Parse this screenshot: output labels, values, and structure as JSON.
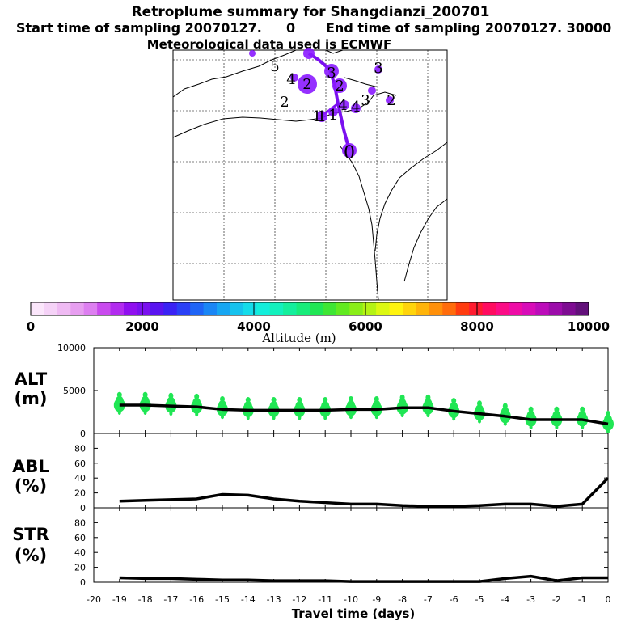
{
  "header": {
    "title": "Retroplume summary for Shangdianzi_200701",
    "line2_start": "Start time of sampling 20070127.",
    "line2_mid": "0",
    "line2_end": "End time of sampling 20070127. 30000",
    "line3": "Meteorological data used is ECMWF"
  },
  "map": {
    "marker_labels": [
      "5",
      "4",
      "2",
      "3",
      "3",
      "2",
      "4",
      "3",
      "1",
      "4",
      "1",
      "2",
      "0",
      "2",
      "1"
    ],
    "track_color": "#7a10ef",
    "marker_color": "#8a1aff"
  },
  "colorbar": {
    "ticks": [
      "0",
      "2000",
      "4000",
      "6000",
      "8000",
      "10000"
    ],
    "label": "Altitude (m)",
    "colors": [
      "#fbe6fb",
      "#f5d2f7",
      "#efbaf3",
      "#e79ef0",
      "#dd7ff0",
      "#c94bee",
      "#b22cef",
      "#9010ef",
      "#7a10ef",
      "#5a14f0",
      "#3a22f4",
      "#2a40f6",
      "#1f64f6",
      "#1a86f5",
      "#17a6f2",
      "#16c2ee",
      "#14dcea",
      "#12eedb",
      "#12f1bd",
      "#14ef9c",
      "#18ec7a",
      "#20e654",
      "#3ee634",
      "#62ea20",
      "#8aee18",
      "#b4f314",
      "#dcf812",
      "#fff40e",
      "#ffd40c",
      "#ffb40a",
      "#ff900a",
      "#ff6c0c",
      "#ff3c10",
      "#ff1c30",
      "#ff0c60",
      "#fb0c86",
      "#ee0ca6",
      "#d80cb8",
      "#bc0cba",
      "#9c0caa",
      "#7e0c92",
      "#62107a"
    ]
  },
  "chart_data": [
    {
      "type": "line",
      "name": "ALT",
      "ylabel": "ALT (m)",
      "yticks": [
        "0",
        "5000",
        "10000"
      ],
      "ylim": [
        0,
        10000
      ],
      "x": [
        0,
        -1,
        -2,
        -3,
        -4,
        -5,
        -6,
        -7,
        -8,
        -9,
        -10,
        -11,
        -12,
        -13,
        -14,
        -15,
        -16,
        -17,
        -18,
        -19
      ],
      "values": [
        1100,
        1600,
        1600,
        1600,
        2000,
        2300,
        2600,
        3000,
        3000,
        2800,
        2800,
        2700,
        2700,
        2700,
        2700,
        2800,
        3100,
        3200,
        3300,
        3300
      ],
      "scatter_color": "#20e654"
    },
    {
      "type": "line",
      "name": "ABL",
      "ylabel": "ABL (%)",
      "yticks": [
        "0",
        "20",
        "40",
        "60",
        "80"
      ],
      "ylim": [
        0,
        100
      ],
      "x": [
        0,
        -1,
        -2,
        -3,
        -4,
        -5,
        -6,
        -7,
        -8,
        -9,
        -10,
        -11,
        -12,
        -13,
        -14,
        -15,
        -16,
        -17,
        -18,
        -19
      ],
      "values": [
        40,
        5,
        2,
        5,
        5,
        3,
        2,
        2,
        3,
        5,
        5,
        7,
        9,
        12,
        17,
        18,
        12,
        11,
        10,
        9
      ]
    },
    {
      "type": "line",
      "name": "STR",
      "ylabel": "STR (%)",
      "yticks": [
        "0",
        "20",
        "40",
        "60",
        "80"
      ],
      "ylim": [
        0,
        100
      ],
      "x": [
        0,
        -1,
        -2,
        -3,
        -4,
        -5,
        -6,
        -7,
        -8,
        -9,
        -10,
        -11,
        -12,
        -13,
        -14,
        -15,
        -16,
        -17,
        -18,
        -19
      ],
      "values": [
        6,
        6,
        2,
        8,
        5,
        1,
        1,
        1,
        1,
        1,
        1,
        2,
        2,
        2,
        3,
        3,
        4,
        5,
        5,
        6
      ]
    }
  ],
  "xaxis": {
    "ticks": [
      "-20",
      "-19",
      "-18",
      "-17",
      "-16",
      "-15",
      "-14",
      "-13",
      "-12",
      "-11",
      "-10",
      "-9",
      "-8",
      "-7",
      "-6",
      "-5",
      "-4",
      "-3",
      "-2",
      "-1",
      "0"
    ],
    "values": [
      -20,
      -19,
      -18,
      -17,
      -16,
      -15,
      -14,
      -13,
      -12,
      -11,
      -10,
      -9,
      -8,
      -7,
      -6,
      -5,
      -4,
      -3,
      -2,
      -1,
      0
    ],
    "label": "Travel time (days)",
    "xlim": [
      -20,
      0
    ]
  }
}
